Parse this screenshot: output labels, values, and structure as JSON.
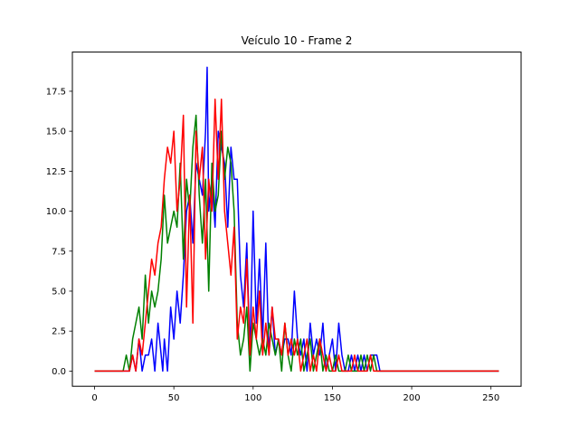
{
  "chart_data": {
    "type": "line",
    "title": "Veículo 10 - Frame 2",
    "xlabel": "",
    "ylabel": "",
    "xlim": [
      -14,
      269
    ],
    "ylim": [
      -0.95,
      19.95
    ],
    "x_ticks": [
      0,
      50,
      100,
      150,
      200,
      250
    ],
    "x_tick_labels": [
      "0",
      "50",
      "100",
      "150",
      "200",
      "250"
    ],
    "y_ticks": [
      0.0,
      2.5,
      5.0,
      7.5,
      10.0,
      12.5,
      15.0,
      17.5
    ],
    "y_tick_labels": [
      "0.0",
      "2.5",
      "5.0",
      "7.5",
      "10.0",
      "12.5",
      "15.0",
      "17.5"
    ],
    "grid": false,
    "series": [
      {
        "color": "#0000ff",
        "x": [
          0,
          20,
          22,
          24,
          26,
          28,
          30,
          32,
          34,
          36,
          38,
          40,
          42,
          43,
          44,
          46,
          48,
          50,
          52,
          54,
          56,
          58,
          60,
          62,
          64,
          66,
          68,
          70,
          71,
          72,
          74,
          76,
          78,
          80,
          82,
          84,
          86,
          88,
          90,
          92,
          94,
          96,
          98,
          100,
          102,
          104,
          106,
          108,
          110,
          112,
          114,
          116,
          118,
          120,
          122,
          124,
          126,
          128,
          130,
          132,
          134,
          136,
          138,
          140,
          142,
          144,
          146,
          148,
          150,
          152,
          154,
          156,
          158,
          160,
          162,
          164,
          166,
          168,
          170,
          172,
          174,
          176,
          178,
          180,
          255
        ],
        "y": [
          0,
          0,
          0,
          1,
          0,
          2,
          0,
          1,
          1,
          2,
          0,
          3,
          1,
          0,
          2,
          0,
          4,
          2,
          5,
          3,
          6,
          10,
          11,
          8,
          13,
          12,
          11,
          15,
          19,
          10,
          12,
          9,
          15,
          14,
          13,
          9,
          14,
          12,
          12,
          6,
          4,
          8,
          1,
          10,
          3,
          7,
          2,
          8,
          1,
          4,
          1,
          2,
          1,
          2,
          2,
          1,
          5,
          2,
          1,
          2,
          0,
          3,
          1,
          2,
          1,
          3,
          0,
          1,
          2,
          0,
          3,
          1,
          0,
          0,
          1,
          0,
          1,
          0,
          1,
          0,
          1,
          1,
          1,
          0,
          0
        ]
      },
      {
        "color": "#008000",
        "x": [
          0,
          18,
          20,
          22,
          24,
          26,
          28,
          30,
          32,
          34,
          36,
          38,
          40,
          42,
          44,
          46,
          48,
          50,
          52,
          54,
          56,
          58,
          60,
          62,
          64,
          66,
          68,
          70,
          72,
          74,
          76,
          78,
          80,
          82,
          84,
          86,
          88,
          90,
          92,
          94,
          96,
          98,
          100,
          102,
          104,
          106,
          108,
          110,
          112,
          114,
          116,
          118,
          120,
          122,
          124,
          126,
          128,
          130,
          132,
          134,
          136,
          138,
          140,
          142,
          144,
          146,
          148,
          150,
          152,
          154,
          156,
          158,
          160,
          162,
          164,
          166,
          168,
          170,
          172,
          174,
          176,
          178,
          180,
          255
        ],
        "y": [
          0,
          0,
          1,
          0,
          2,
          3,
          4,
          2,
          6,
          3,
          5,
          4,
          5,
          7,
          11,
          8,
          9,
          10,
          9,
          13,
          7,
          12,
          10,
          14,
          16,
          11,
          8,
          12,
          5,
          13,
          10,
          11,
          15,
          12,
          14,
          13,
          10,
          3,
          1,
          2,
          4,
          0,
          3,
          2,
          1,
          2,
          1,
          3,
          2,
          1,
          2,
          0,
          3,
          1,
          0,
          2,
          1,
          2,
          0,
          1,
          2,
          0,
          1,
          2,
          0,
          1,
          0,
          0,
          1,
          0,
          0,
          0,
          1,
          0,
          0,
          0,
          1,
          0,
          1,
          0,
          1,
          0,
          0,
          0
        ]
      },
      {
        "color": "#ff0000",
        "x": [
          0,
          20,
          22,
          24,
          26,
          28,
          30,
          32,
          34,
          36,
          38,
          40,
          42,
          44,
          46,
          48,
          50,
          52,
          54,
          56,
          58,
          60,
          62,
          64,
          66,
          68,
          70,
          72,
          74,
          76,
          78,
          80,
          82,
          84,
          86,
          88,
          90,
          92,
          94,
          96,
          98,
          100,
          102,
          104,
          106,
          108,
          110,
          112,
          114,
          116,
          118,
          120,
          122,
          124,
          126,
          128,
          130,
          132,
          134,
          136,
          138,
          140,
          142,
          144,
          146,
          148,
          150,
          152,
          154,
          156,
          158,
          160,
          162,
          164,
          166,
          168,
          170,
          172,
          174,
          176,
          178,
          180,
          255
        ],
        "y": [
          0,
          0,
          0,
          1,
          0,
          2,
          1,
          3,
          5,
          7,
          6,
          8,
          9,
          12,
          14,
          13,
          15,
          10,
          12,
          16,
          4,
          11,
          3,
          15,
          12,
          14,
          7,
          12,
          10,
          17,
          12,
          17,
          10,
          8,
          6,
          9,
          2,
          4,
          3,
          7,
          1,
          4,
          2,
          5,
          1,
          3,
          1,
          4,
          2,
          2,
          1,
          3,
          1,
          2,
          1,
          2,
          0,
          1,
          2,
          0,
          1,
          0,
          2,
          1,
          0,
          1,
          0,
          0,
          1,
          0,
          0,
          0,
          0,
          1,
          0,
          0,
          0,
          0,
          1,
          0,
          0,
          0,
          0
        ]
      }
    ]
  }
}
